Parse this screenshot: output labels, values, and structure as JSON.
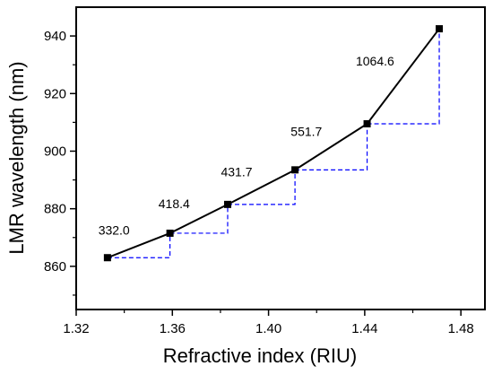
{
  "chart_data": {
    "type": "line",
    "title": "",
    "xlabel": "Refractive index (RIU)",
    "ylabel": "LMR wavelength (nm)",
    "xlim": [
      1.32,
      1.49
    ],
    "ylim": [
      845,
      950
    ],
    "xticks": [
      1.32,
      1.36,
      1.4,
      1.44,
      1.48
    ],
    "xtick_labels": [
      "1.32",
      "1.36",
      "1.40",
      "1.44",
      "1.48"
    ],
    "yticks": [
      860,
      880,
      900,
      920,
      940
    ],
    "ytick_labels": [
      "860",
      "880",
      "900",
      "920",
      "940"
    ],
    "grid": false,
    "series": [
      {
        "x": [
          1.333,
          1.359,
          1.383,
          1.411,
          1.441,
          1.471
        ],
        "y": [
          863.0,
          871.5,
          881.5,
          893.5,
          909.5,
          942.5
        ],
        "color": "#000000",
        "marker": "square"
      }
    ],
    "step_guides_color": "#0000ff",
    "sensitivity_labels": [
      "332.0",
      "418.4",
      "431.7",
      "551.7",
      "1064.6"
    ]
  }
}
